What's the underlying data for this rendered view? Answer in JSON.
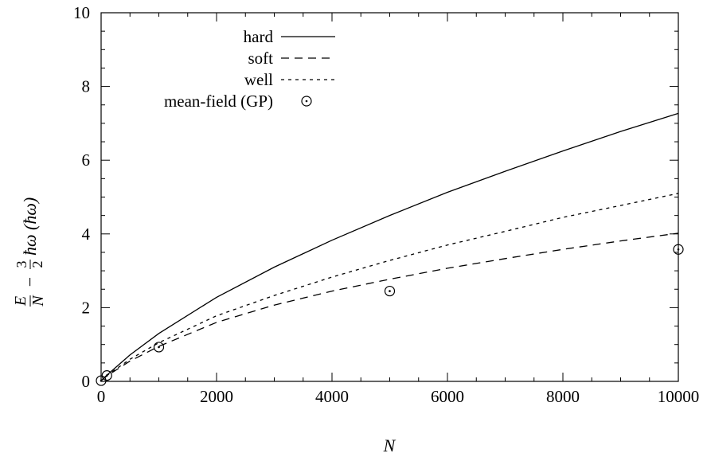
{
  "chart_data": {
    "type": "line",
    "xlabel": "N",
    "ylabel": "E/N − (3/2)ħω (ħω)",
    "xlim": [
      0,
      10000
    ],
    "ylim": [
      0,
      10
    ],
    "x_ticks": [
      0,
      2000,
      4000,
      6000,
      8000,
      10000
    ],
    "y_ticks": [
      0,
      2,
      4,
      6,
      8,
      10
    ],
    "x_tick_labels": [
      "0",
      "2000",
      "4000",
      "6000",
      "8000",
      "10000"
    ],
    "y_tick_labels": [
      "0",
      "2",
      "4",
      "6",
      "8",
      "10"
    ],
    "grid": false,
    "legend_position": "top-left",
    "series": [
      {
        "name": "hard",
        "style": "solid",
        "x": [
          0,
          100,
          500,
          1000,
          2000,
          3000,
          4000,
          5000,
          6000,
          7000,
          8000,
          9000,
          10000
        ],
        "y": [
          0.02,
          0.17,
          0.72,
          1.3,
          2.28,
          3.1,
          3.83,
          4.5,
          5.13,
          5.7,
          6.25,
          6.78,
          7.27
        ]
      },
      {
        "name": "soft",
        "style": "dashed",
        "x": [
          0,
          100,
          500,
          1000,
          2000,
          3000,
          4000,
          5000,
          6000,
          7000,
          8000,
          9000,
          10000
        ],
        "y": [
          0.02,
          0.15,
          0.55,
          0.95,
          1.6,
          2.07,
          2.45,
          2.77,
          3.07,
          3.33,
          3.58,
          3.81,
          4.02
        ]
      },
      {
        "name": "well",
        "style": "dotted",
        "x": [
          0,
          100,
          500,
          1000,
          2000,
          3000,
          4000,
          5000,
          6000,
          7000,
          8000,
          9000,
          10000
        ],
        "y": [
          0.02,
          0.16,
          0.6,
          1.05,
          1.78,
          2.33,
          2.83,
          3.28,
          3.7,
          4.07,
          4.45,
          4.77,
          5.1
        ]
      },
      {
        "name": "mean-field (GP)",
        "style": "markers",
        "x": [
          0,
          100,
          1000,
          5000,
          10000
        ],
        "y": [
          0.02,
          0.16,
          0.93,
          2.45,
          3.58
        ]
      }
    ]
  }
}
